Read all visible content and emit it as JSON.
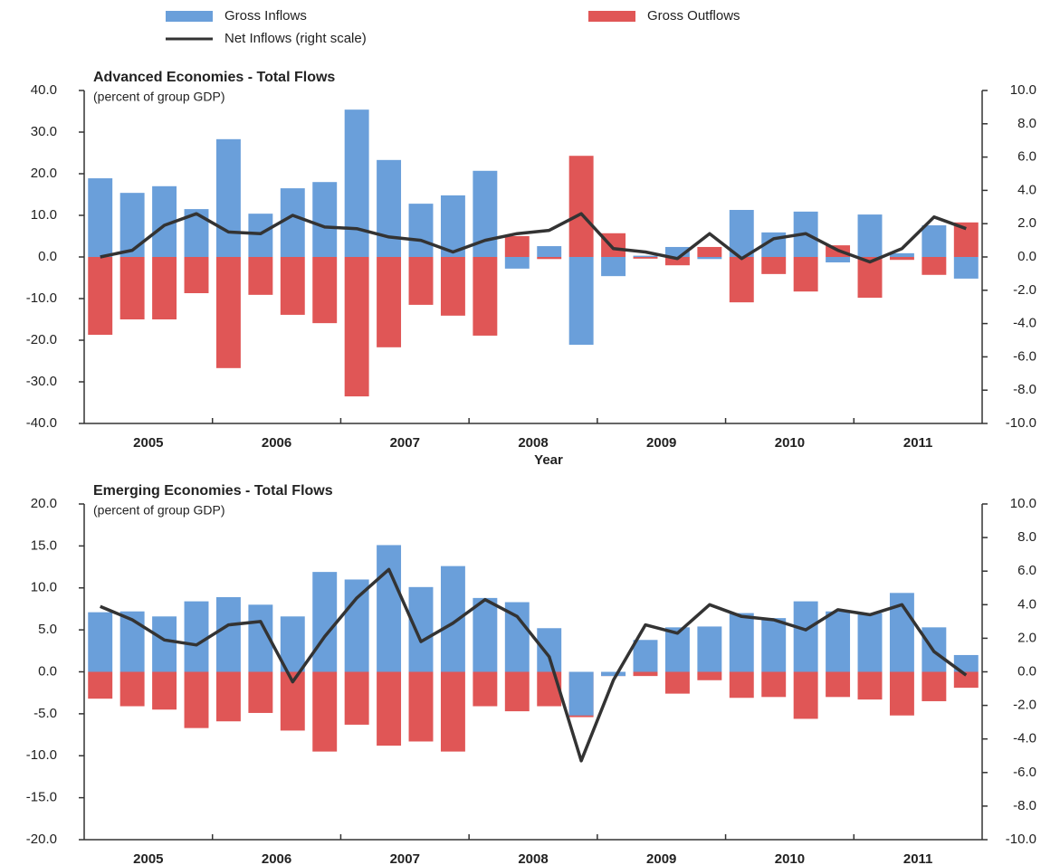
{
  "chart_data": [
    {
      "type": "bar",
      "title": "Advanced Economies - Total Flows",
      "subtitle": "(percent of group GDP)",
      "x_label": "Year",
      "legend": "top",
      "categories": [
        "2005",
        null,
        null,
        null,
        "2006",
        null,
        null,
        null,
        "2007",
        null,
        null,
        null,
        "2008",
        null,
        null,
        null,
        "2009",
        null,
        null,
        null,
        "2010",
        null,
        null,
        null,
        "2011",
        null,
        null,
        null
      ],
      "series": [
        {
          "name": "Gross Inflows",
          "color": "#6a9fda",
          "values": [
            18.9,
            15.4,
            17.0,
            11.5,
            28.3,
            10.4,
            16.5,
            18.0,
            35.4,
            23.3,
            12.8,
            14.8,
            20.7,
            -2.8,
            2.6,
            -21.1,
            -4.6,
            0.3,
            2.4,
            -0.5,
            11.3,
            5.9,
            10.9,
            -1.3,
            10.2,
            0.9,
            7.6,
            -5.2
          ]
        },
        {
          "name": "Gross Outflows",
          "color": "#e05656",
          "values": [
            -18.7,
            -15.0,
            -15.0,
            -8.7,
            -26.7,
            -9.1,
            -13.9,
            -15.9,
            -33.5,
            -21.7,
            -11.5,
            -14.1,
            -18.9,
            5.0,
            -0.5,
            24.3,
            5.7,
            -0.4,
            -2.0,
            2.4,
            -10.9,
            -4.1,
            -8.3,
            2.8,
            -9.8,
            -0.7,
            -4.3,
            8.3
          ]
        },
        {
          "name": "Net Inflows (right scale)",
          "color": "#333333",
          "axis": "y2",
          "values": [
            0.0,
            0.4,
            1.9,
            2.6,
            1.5,
            1.4,
            2.5,
            1.8,
            1.7,
            1.2,
            1.0,
            0.3,
            1.0,
            1.4,
            1.6,
            2.6,
            0.5,
            0.3,
            -0.1,
            1.4,
            -0.1,
            1.1,
            1.4,
            0.4,
            -0.3,
            0.5,
            2.4,
            1.7
          ]
        }
      ],
      "ylim": [
        -40,
        40
      ],
      "yticks": [
        {
          "value": 40,
          "label": "40.0"
        },
        {
          "value": 30,
          "label": "30.0"
        },
        {
          "value": 20,
          "label": "20.0"
        },
        {
          "value": 10,
          "label": "10.0"
        },
        {
          "value": 0,
          "label": "0.0"
        },
        {
          "value": -10,
          "label": "-10.0"
        },
        {
          "value": -20,
          "label": "-20.0"
        },
        {
          "value": -30,
          "label": "-30.0"
        },
        {
          "value": -40,
          "label": "-40.0"
        }
      ],
      "y2lim": [
        -10,
        10
      ],
      "y2ticks": [
        {
          "value": 10,
          "label": "10.0"
        },
        {
          "value": 8,
          "label": "8.0"
        },
        {
          "value": 6,
          "label": "6.0"
        },
        {
          "value": 4,
          "label": "4.0"
        },
        {
          "value": 2,
          "label": "2.0"
        },
        {
          "value": 0,
          "label": "0.0"
        },
        {
          "value": -2,
          "label": "-2.0"
        },
        {
          "value": -4,
          "label": "-4.0"
        },
        {
          "value": -6,
          "label": "-6.0"
        },
        {
          "value": -8,
          "label": "-8.0"
        },
        {
          "value": -10,
          "label": "-10.0"
        }
      ]
    },
    {
      "type": "bar",
      "title": "Emerging Economies - Total Flows",
      "subtitle": "(percent of group GDP)",
      "categories": [
        "2005",
        null,
        null,
        null,
        "2006",
        null,
        null,
        null,
        "2007",
        null,
        null,
        null,
        "2008",
        null,
        null,
        null,
        "2009",
        null,
        null,
        null,
        "2010",
        null,
        null,
        null,
        "2011",
        null,
        null,
        null
      ],
      "series": [
        {
          "color": "#6a9fda",
          "values": [
            7.1,
            7.2,
            6.6,
            8.4,
            8.9,
            8.0,
            6.6,
            11.9,
            11.0,
            15.1,
            10.1,
            12.6,
            8.8,
            8.3,
            5.2,
            -5.2,
            -0.5,
            3.8,
            5.3,
            5.4,
            7.0,
            6.4,
            8.4,
            7.2,
            7.0,
            9.4,
            5.3,
            2.0
          ]
        },
        {
          "color": "#e05656",
          "values": [
            -3.2,
            -4.1,
            -4.5,
            -6.7,
            -5.9,
            -4.9,
            -7.0,
            -9.5,
            -6.3,
            -8.8,
            -8.3,
            -9.5,
            -4.1,
            -4.7,
            -4.1,
            -5.4,
            -0.5,
            -0.5,
            -2.6,
            -1.0,
            -3.1,
            -3.0,
            -5.6,
            -3.0,
            -3.3,
            -5.2,
            -3.5,
            -1.9
          ]
        },
        {
          "color": "#333333",
          "axis": "y2",
          "values": [
            3.9,
            3.1,
            1.9,
            1.6,
            2.8,
            3.0,
            -0.6,
            2.1,
            4.4,
            6.1,
            1.8,
            2.9,
            4.3,
            3.3,
            0.9,
            -5.3,
            -0.5,
            2.8,
            2.3,
            4.0,
            3.3,
            3.1,
            2.5,
            3.7,
            3.4,
            4.0,
            1.2,
            -0.2
          ]
        }
      ],
      "ylim": [
        -20,
        20
      ],
      "yticks": [
        {
          "value": 20,
          "label": "20.0"
        },
        {
          "value": 15,
          "label": "15.0"
        },
        {
          "value": 10,
          "label": "10.0"
        },
        {
          "value": 5,
          "label": "5.0"
        },
        {
          "value": 0,
          "label": "0.0"
        },
        {
          "value": -5,
          "label": "-5.0"
        },
        {
          "value": -10,
          "label": "-10.0"
        },
        {
          "value": -15,
          "label": "-15.0"
        },
        {
          "value": -20,
          "label": "-20.0"
        }
      ],
      "y2lim": [
        -10,
        10
      ],
      "y2ticks": [
        {
          "value": 10,
          "label": "10.0"
        },
        {
          "value": 8,
          "label": "8.0"
        },
        {
          "value": 6,
          "label": "6.0"
        },
        {
          "value": 4,
          "label": "4.0"
        },
        {
          "value": 2,
          "label": "2.0"
        },
        {
          "value": 0,
          "label": "0.0"
        },
        {
          "value": -2,
          "label": "-2.0"
        },
        {
          "value": -4,
          "label": "-4.0"
        },
        {
          "value": -6,
          "label": "-6.0"
        },
        {
          "value": -8,
          "label": "-8.0"
        },
        {
          "value": -10,
          "label": "-10.0"
        }
      ]
    }
  ]
}
